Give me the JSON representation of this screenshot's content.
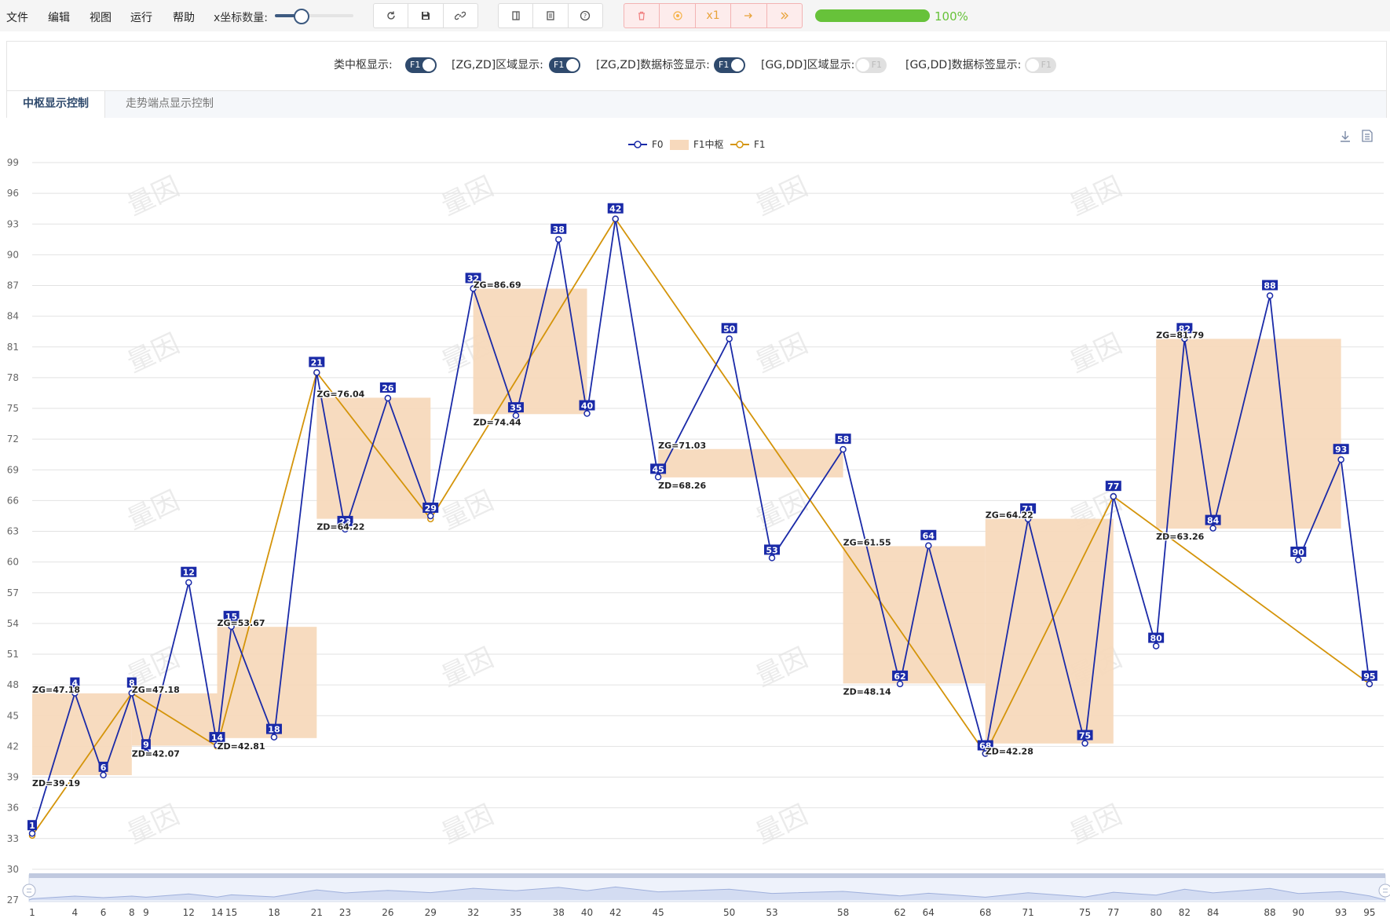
{
  "menu": [
    "文件",
    "编辑",
    "视图",
    "运行",
    "帮助"
  ],
  "slider": {
    "label": "x坐标数量:",
    "value": 0.32
  },
  "toolbar": {
    "group1": [
      "refresh-icon",
      "save-icon",
      "link-icon"
    ],
    "group2": [
      "panel-icon",
      "document-icon",
      "help-icon"
    ],
    "run_group": [
      "delete-icon",
      "stop-icon",
      "x1",
      "step-icon",
      "fast-forward-icon"
    ]
  },
  "progress": {
    "value": 1.0,
    "text": "100%"
  },
  "switches": [
    {
      "label": "类中枢显示:",
      "state": "F1",
      "on": true
    },
    {
      "label": "[ZG,ZD]区域显示:",
      "state": "F1",
      "on": true
    },
    {
      "label": "[ZG,ZD]数据标签显示:",
      "state": "F1",
      "on": true
    },
    {
      "label": "[GG,DD]区域显示:",
      "state": "F1",
      "on": false
    },
    {
      "label": "[GG,DD]数据标签显示:",
      "state": "F1",
      "on": false
    }
  ],
  "tabs": [
    "中枢显示控制",
    "走势端点显示控制"
  ],
  "colors": {
    "f0": "#1a2aa8",
    "f1": "#d4940a",
    "zone": "#f7d9bc",
    "accent": "#2f4a6d",
    "progress": "#67c23a"
  },
  "chart_data": {
    "type": "line",
    "legend": [
      "F0",
      "F1中枢",
      "F1"
    ],
    "ylim": [
      27,
      99
    ],
    "yticks": [
      27,
      30,
      33,
      36,
      39,
      42,
      45,
      48,
      51,
      54,
      57,
      60,
      63,
      66,
      69,
      72,
      75,
      78,
      81,
      84,
      87,
      90,
      93,
      96,
      99
    ],
    "xlim": [
      1,
      96
    ],
    "xticks": [
      1,
      4,
      6,
      8,
      9,
      12,
      14,
      15,
      18,
      21,
      23,
      26,
      29,
      32,
      35,
      38,
      40,
      42,
      45,
      50,
      53,
      58,
      62,
      64,
      68,
      71,
      75,
      77,
      80,
      82,
      84,
      88,
      90,
      93,
      95
    ],
    "series": [
      {
        "name": "F0",
        "x": [
          1,
          4,
          6,
          8,
          9,
          12,
          14,
          15,
          18,
          21,
          23,
          26,
          29,
          32,
          35,
          38,
          40,
          42,
          45,
          50,
          53,
          58,
          62,
          64,
          68,
          71,
          75,
          77,
          80,
          82,
          84,
          88,
          90,
          93,
          95
        ],
        "y": [
          33.5,
          47.2,
          39.2,
          47.2,
          41.4,
          58.0,
          42.1,
          53.7,
          42.9,
          78.5,
          63.2,
          76.0,
          64.5,
          86.7,
          74.3,
          91.5,
          74.5,
          93.5,
          68.3,
          81.8,
          60.4,
          71.0,
          48.1,
          61.6,
          41.3,
          64.2,
          42.3,
          66.4,
          51.8,
          81.8,
          63.3,
          86.0,
          60.2,
          70.0,
          48.1
        ]
      },
      {
        "name": "F1",
        "x": [
          1,
          8,
          14,
          21,
          29,
          42,
          68,
          77,
          95
        ],
        "y": [
          33.3,
          47.2,
          42.0,
          78.5,
          64.2,
          93.5,
          41.3,
          66.4,
          48.1
        ]
      }
    ],
    "zones": [
      {
        "x0": 1,
        "x1": 8,
        "zg": 47.18,
        "zd": 39.19
      },
      {
        "x0": 8,
        "x1": 14,
        "zg": 47.18,
        "zd": 42.07
      },
      {
        "x0": 14,
        "x1": 21,
        "zg": 53.67,
        "zd": 42.81
      },
      {
        "x0": 21,
        "x1": 29,
        "zg": 76.04,
        "zd": 64.22
      },
      {
        "x0": 32,
        "x1": 40,
        "zg": 86.69,
        "zd": 74.44
      },
      {
        "x0": 45,
        "x1": 58,
        "zg": 71.03,
        "zd": 68.26
      },
      {
        "x0": 58,
        "x1": 68,
        "zg": 61.55,
        "zd": 48.14
      },
      {
        "x0": 68,
        "x1": 77,
        "zg": 64.22,
        "zd": 42.28
      },
      {
        "x0": 80,
        "x1": 93,
        "zg": 81.79,
        "zd": 63.26
      }
    ],
    "zone_labels": [
      {
        "text": "ZG=47.18",
        "pos": "zg",
        "zone": 0
      },
      {
        "text": "ZD=39.19",
        "pos": "zd",
        "zone": 0
      },
      {
        "text": "ZG=47.18",
        "pos": "zg",
        "zone": 1
      },
      {
        "text": "ZD=42.07",
        "pos": "zd",
        "zone": 1
      },
      {
        "text": "ZG=53.67",
        "pos": "zg",
        "zone": 2
      },
      {
        "text": "ZD=42.81",
        "pos": "zd",
        "zone": 2
      },
      {
        "text": "ZG=76.04",
        "pos": "zg",
        "zone": 3
      },
      {
        "text": "ZD=64.22",
        "pos": "zd",
        "zone": 3
      },
      {
        "text": "ZG=86.69",
        "pos": "zg",
        "zone": 4
      },
      {
        "text": "ZD=74.44",
        "pos": "zd",
        "zone": 4
      },
      {
        "text": "ZG=71.03",
        "pos": "zg",
        "zone": 5
      },
      {
        "text": "ZD=68.26",
        "pos": "zd",
        "zone": 5
      },
      {
        "text": "ZG=61.55",
        "pos": "zg",
        "zone": 6
      },
      {
        "text": "ZD=48.14",
        "pos": "zd",
        "zone": 6
      },
      {
        "text": "ZG=64.22",
        "pos": "zg",
        "zone": 7
      },
      {
        "text": "ZD=42.28",
        "pos": "zd",
        "zone": 7
      },
      {
        "text": "ZG=81.79",
        "pos": "zg",
        "zone": 8
      },
      {
        "text": "ZD=63.26",
        "pos": "zd",
        "zone": 8
      }
    ],
    "watermark": "量因"
  }
}
